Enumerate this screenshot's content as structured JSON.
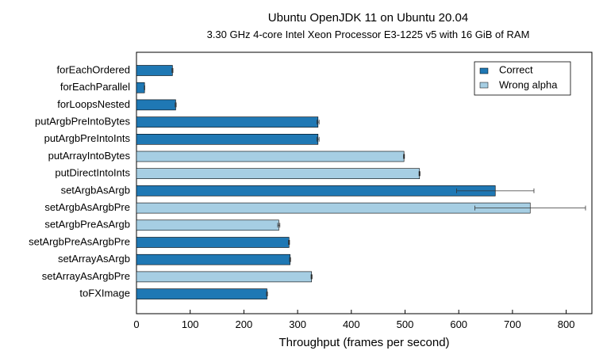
{
  "chart_data": {
    "type": "bar",
    "orientation": "horizontal",
    "title": "Ubuntu OpenJDK 11 on Ubuntu 20.04",
    "subtitle": "3.30 GHz 4-core Intel Xeon Processor E3-1225 v5 with 16 GiB of RAM",
    "xlabel": "Throughput (frames per second)",
    "ylabel": "",
    "xlim": [
      0,
      840
    ],
    "xticks": [
      0,
      100,
      200,
      300,
      400,
      500,
      600,
      700,
      800
    ],
    "grid": false,
    "legend_position": "top-right",
    "series": [
      {
        "name": "Correct",
        "color": "#1f78b4"
      },
      {
        "name": "Wrong alpha",
        "color": "#a6cee3"
      }
    ],
    "categories": [
      "forEachOrdered",
      "forEachParallel",
      "forLoopsNested",
      "putArgbPreIntoBytes",
      "putArgbPreIntoInts",
      "putArrayIntoBytes",
      "putDirectIntoInts",
      "setArgbAsArgb",
      "setArgbAsArgbPre",
      "setArgbPreAsArgb",
      "setArgbPreAsArgbPre",
      "setArrayAsArgb",
      "setArrayAsArgbPre",
      "toFXImage"
    ],
    "values": [
      67,
      15,
      73,
      338,
      338,
      498,
      527,
      668,
      733,
      265,
      284,
      286,
      326,
      243
    ],
    "errors": [
      1,
      0.5,
      1,
      2,
      2,
      1,
      1,
      72,
      103,
      2,
      1,
      1,
      1,
      1
    ],
    "series_index": [
      0,
      0,
      0,
      0,
      0,
      1,
      1,
      0,
      1,
      1,
      0,
      0,
      1,
      0
    ]
  }
}
